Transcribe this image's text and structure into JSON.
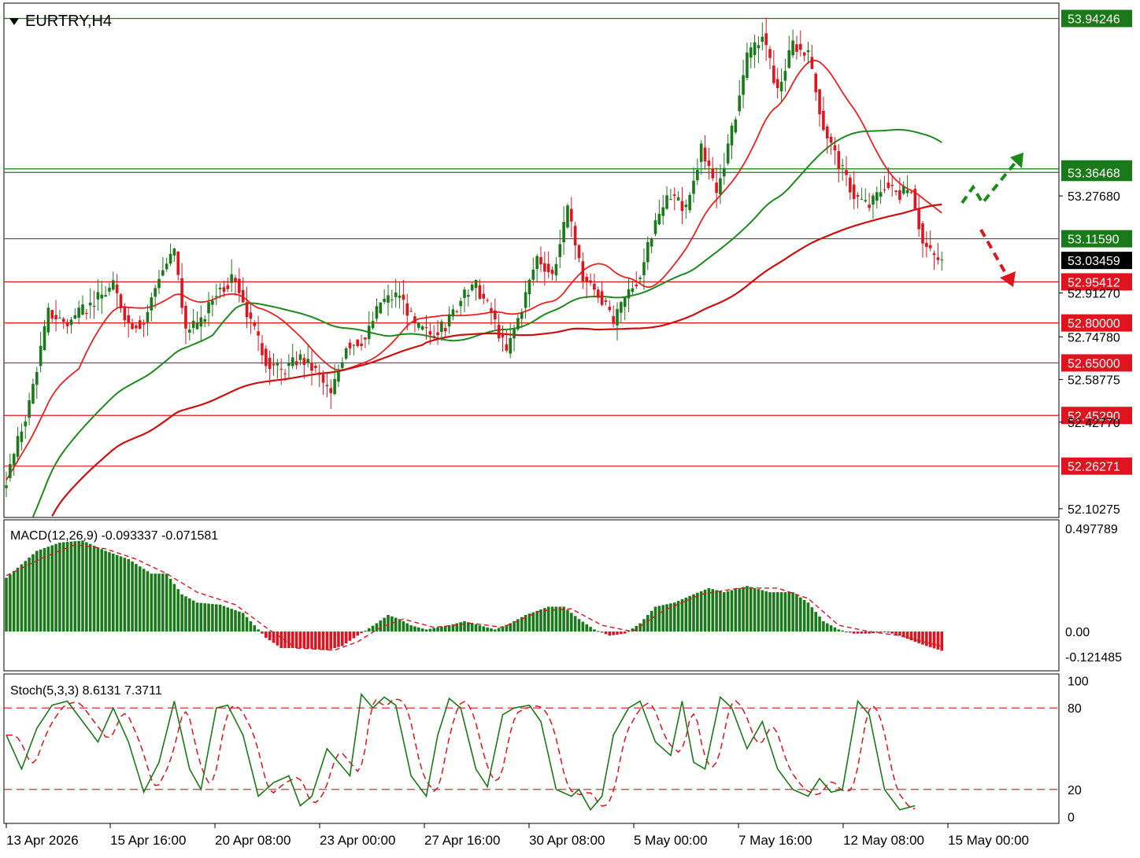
{
  "header": {
    "symbol": "EURTRY,H4"
  },
  "colors": {
    "bull": "#1a7a1a",
    "bear": "#e0141e",
    "green_level": "#1a7a1a",
    "red_level": "#e0141e",
    "ma_fast": "#ee2222",
    "ma_mid": "#1e8a1e",
    "ma_slow": "#cc1111",
    "current_price_bg": "#000000",
    "macd_pos": "#1a7a1a",
    "macd_neg": "#e0141e",
    "stoch_main": "#1a7a1a",
    "stoch_signal": "#e0141e"
  },
  "chart_data": [
    {
      "type": "candlestick",
      "title": "EURTRY,H4",
      "ylim": [
        52.07,
        54.0
      ],
      "price_axis_ticks": [
        "53.27680",
        "52.91270",
        "52.74780",
        "52.58775",
        "52.42770",
        "52.10275"
      ],
      "time_axis_labels": [
        "13 Apr 2026",
        "15 Apr 16:00",
        "20 Apr 08:00",
        "23 Apr 00:00",
        "27 Apr 16:00",
        "30 Apr 08:00",
        "5 May 00:00",
        "7 May 16:00",
        "12 May 08:00",
        "15 May 00:00"
      ],
      "resistance_levels": [
        "53.94246",
        "53.37803",
        "53.36468",
        "53.11590"
      ],
      "support_levels": [
        "52.95412",
        "52.80000",
        "52.65000",
        "52.45290",
        "52.26271"
      ],
      "current_price": "53.03459",
      "anchors": [
        [
          0,
          52.21
        ],
        [
          6,
          52.5
        ],
        [
          11,
          52.84
        ],
        [
          16,
          52.8
        ],
        [
          22,
          52.87
        ],
        [
          28,
          52.94
        ],
        [
          32,
          52.8
        ],
        [
          36,
          52.8
        ],
        [
          40,
          52.98
        ],
        [
          44,
          53.07
        ],
        [
          47,
          52.77
        ],
        [
          51,
          52.8
        ],
        [
          55,
          52.92
        ],
        [
          60,
          52.97
        ],
        [
          64,
          52.8
        ],
        [
          68,
          52.66
        ],
        [
          72,
          52.62
        ],
        [
          77,
          52.67
        ],
        [
          81,
          52.62
        ],
        [
          85,
          52.53
        ],
        [
          89,
          52.72
        ],
        [
          94,
          52.74
        ],
        [
          98,
          52.88
        ],
        [
          103,
          52.91
        ],
        [
          107,
          52.79
        ],
        [
          111,
          52.76
        ],
        [
          115,
          52.79
        ],
        [
          119,
          52.89
        ],
        [
          123,
          52.94
        ],
        [
          127,
          52.84
        ],
        [
          131,
          52.69
        ],
        [
          135,
          52.86
        ],
        [
          139,
          53.05
        ],
        [
          143,
          52.98
        ],
        [
          147,
          53.22
        ],
        [
          151,
          52.97
        ],
        [
          155,
          52.91
        ],
        [
          159,
          52.8
        ],
        [
          163,
          52.92
        ],
        [
          166,
          52.98
        ],
        [
          170,
          53.18
        ],
        [
          174,
          53.28
        ],
        [
          178,
          53.23
        ],
        [
          182,
          53.45
        ],
        [
          186,
          53.29
        ],
        [
          190,
          53.52
        ],
        [
          194,
          53.79
        ],
        [
          198,
          53.88
        ],
        [
          202,
          53.67
        ],
        [
          206,
          53.85
        ],
        [
          210,
          53.8
        ],
        [
          214,
          53.54
        ],
        [
          218,
          53.4
        ],
        [
          222,
          53.28
        ],
        [
          226,
          53.24
        ],
        [
          230,
          53.32
        ],
        [
          234,
          53.28
        ],
        [
          237,
          53.31
        ],
        [
          240,
          53.1
        ],
        [
          243,
          53.05
        ],
        [
          245,
          53.03
        ]
      ],
      "candle_count": 246,
      "series": [
        {
          "name": "MA fast",
          "y_at_end": 53.34
        },
        {
          "name": "MA mid",
          "y_at_end": 53.25
        },
        {
          "name": "MA slow",
          "y_at_end": 53.0
        }
      ],
      "annotations": [
        "green dashed arrow up",
        "red dashed arrow down"
      ]
    },
    {
      "type": "bar",
      "title": "MACD(12,26,9) -0.093337 -0.071581",
      "ylim": [
        -0.19,
        0.54
      ],
      "axis_labels": [
        "0.497789",
        "0.00",
        "-0.121485"
      ],
      "anchors": [
        [
          0,
          0.26
        ],
        [
          8,
          0.39
        ],
        [
          14,
          0.43
        ],
        [
          20,
          0.44
        ],
        [
          26,
          0.39
        ],
        [
          32,
          0.35
        ],
        [
          38,
          0.28
        ],
        [
          42,
          0.28
        ],
        [
          46,
          0.18
        ],
        [
          50,
          0.14
        ],
        [
          56,
          0.13
        ],
        [
          62,
          0.09
        ],
        [
          66,
          0.01
        ],
        [
          68,
          -0.03
        ],
        [
          72,
          -0.08
        ],
        [
          78,
          -0.08
        ],
        [
          84,
          -0.09
        ],
        [
          88,
          -0.07
        ],
        [
          92,
          -0.02
        ],
        [
          97,
          0.04
        ],
        [
          100,
          0.08
        ],
        [
          103,
          0.06
        ],
        [
          106,
          0.03
        ],
        [
          110,
          0.01
        ],
        [
          116,
          0.03
        ],
        [
          120,
          0.05
        ],
        [
          124,
          0.03
        ],
        [
          128,
          0.01
        ],
        [
          132,
          0.04
        ],
        [
          136,
          0.08
        ],
        [
          142,
          0.12
        ],
        [
          146,
          0.12
        ],
        [
          150,
          0.06
        ],
        [
          154,
          0.01
        ],
        [
          158,
          -0.02
        ],
        [
          162,
          -0.01
        ],
        [
          166,
          0.04
        ],
        [
          170,
          0.12
        ],
        [
          175,
          0.14
        ],
        [
          180,
          0.18
        ],
        [
          184,
          0.21
        ],
        [
          188,
          0.19
        ],
        [
          194,
          0.22
        ],
        [
          200,
          0.19
        ],
        [
          206,
          0.19
        ],
        [
          210,
          0.14
        ],
        [
          214,
          0.05
        ],
        [
          218,
          0.01
        ],
        [
          222,
          -0.01
        ],
        [
          226,
          -0.01
        ],
        [
          230,
          0.0
        ],
        [
          234,
          -0.02
        ],
        [
          238,
          -0.05
        ],
        [
          241,
          -0.07
        ],
        [
          245,
          -0.093
        ]
      ],
      "signal_anchors": [
        [
          0,
          0.27
        ],
        [
          10,
          0.36
        ],
        [
          18,
          0.42
        ],
        [
          26,
          0.4
        ],
        [
          34,
          0.35
        ],
        [
          42,
          0.28
        ],
        [
          50,
          0.19
        ],
        [
          60,
          0.13
        ],
        [
          68,
          0.02
        ],
        [
          76,
          -0.08
        ],
        [
          86,
          -0.09
        ],
        [
          92,
          -0.05
        ],
        [
          98,
          0.02
        ],
        [
          104,
          0.06
        ],
        [
          112,
          0.02
        ],
        [
          122,
          0.04
        ],
        [
          130,
          0.02
        ],
        [
          140,
          0.1
        ],
        [
          148,
          0.11
        ],
        [
          156,
          0.03
        ],
        [
          164,
          0.0
        ],
        [
          172,
          0.1
        ],
        [
          182,
          0.18
        ],
        [
          192,
          0.21
        ],
        [
          202,
          0.21
        ],
        [
          210,
          0.16
        ],
        [
          218,
          0.03
        ],
        [
          226,
          0.0
        ],
        [
          234,
          -0.02
        ],
        [
          245,
          -0.072
        ]
      ],
      "values_current": {
        "macd": -0.093337,
        "signal": -0.071581
      }
    },
    {
      "type": "line",
      "title": "Stoch(5,3,3) 8.6131 7.3711",
      "ylim": [
        -5,
        105
      ],
      "axis_labels": [
        "100",
        "80",
        "20",
        "0"
      ],
      "levels": [
        80,
        20
      ],
      "series": [
        {
          "name": "Main",
          "anchors": [
            [
              0,
              60
            ],
            [
              4,
              35
            ],
            [
              8,
              65
            ],
            [
              12,
              82
            ],
            [
              16,
              85
            ],
            [
              20,
              70
            ],
            [
              24,
              55
            ],
            [
              28,
              80
            ],
            [
              32,
              55
            ],
            [
              36,
              18
            ],
            [
              40,
              40
            ],
            [
              44,
              85
            ],
            [
              48,
              35
            ],
            [
              51,
              20
            ],
            [
              55,
              80
            ],
            [
              58,
              82
            ],
            [
              62,
              60
            ],
            [
              66,
              15
            ],
            [
              70,
              25
            ],
            [
              74,
              30
            ],
            [
              77,
              8
            ],
            [
              80,
              15
            ],
            [
              84,
              50
            ],
            [
              87,
              40
            ],
            [
              90,
              30
            ],
            [
              93,
              90
            ],
            [
              96,
              80
            ],
            [
              99,
              88
            ],
            [
              102,
              82
            ],
            [
              106,
              30
            ],
            [
              110,
              15
            ],
            [
              113,
              60
            ],
            [
              116,
              87
            ],
            [
              119,
              80
            ],
            [
              123,
              35
            ],
            [
              126,
              22
            ],
            [
              130,
              75
            ],
            [
              133,
              80
            ],
            [
              137,
              82
            ],
            [
              140,
              70
            ],
            [
              144,
              20
            ],
            [
              148,
              15
            ],
            [
              150,
              20
            ],
            [
              153,
              5
            ],
            [
              156,
              15
            ],
            [
              159,
              60
            ],
            [
              163,
              80
            ],
            [
              166,
              85
            ],
            [
              170,
              55
            ],
            [
              174,
              45
            ],
            [
              177,
              85
            ],
            [
              180,
              40
            ],
            [
              183,
              35
            ],
            [
              187,
              88
            ],
            [
              190,
              80
            ],
            [
              194,
              50
            ],
            [
              198,
              70
            ],
            [
              202,
              35
            ],
            [
              206,
              20
            ],
            [
              210,
              15
            ],
            [
              213,
              28
            ],
            [
              216,
              18
            ],
            [
              219,
              20
            ],
            [
              223,
              85
            ],
            [
              226,
              75
            ],
            [
              230,
              20
            ],
            [
              234,
              5
            ],
            [
              238,
              8
            ]
          ]
        },
        {
          "name": "Signal",
          "lag": 2
        }
      ],
      "values_current": {
        "main": 8.6131,
        "signal": 7.3711
      }
    }
  ]
}
